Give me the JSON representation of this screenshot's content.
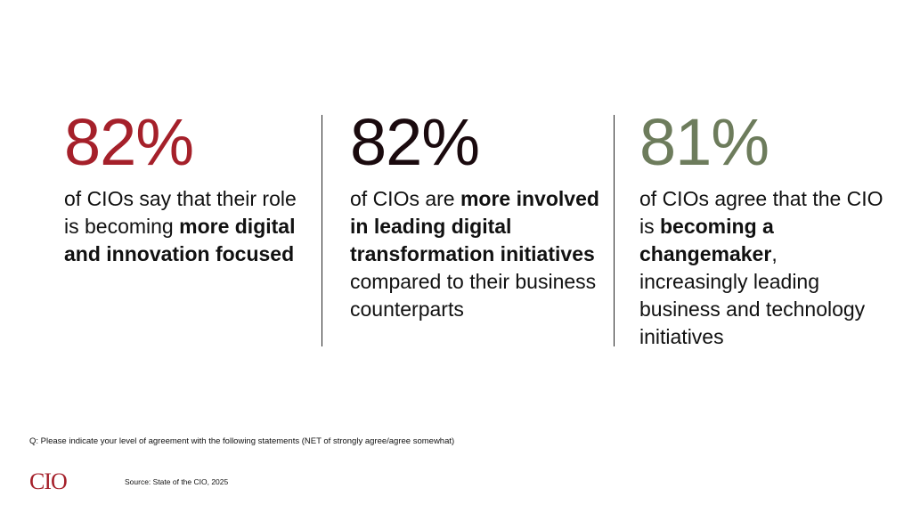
{
  "colors": {
    "stat1": "#a5202a",
    "stat2": "#1a0a0e",
    "stat3": "#6d7c5c",
    "logo": "#a5202a"
  },
  "stats": [
    {
      "value": "82%",
      "parts": [
        {
          "t": "of CIOs say that their role is becoming ",
          "b": false
        },
        {
          "t": "more digital and innovation focused",
          "b": true
        }
      ]
    },
    {
      "value": "82%",
      "parts": [
        {
          "t": "of CIOs are ",
          "b": false
        },
        {
          "t": "more involved in leading digital transformation initiatives",
          "b": true
        },
        {
          "t": " compared to their business counterparts",
          "b": false
        }
      ]
    },
    {
      "value": "81%",
      "parts": [
        {
          "t": "of CIOs agree that the CIO is ",
          "b": false
        },
        {
          "t": "becoming a changemaker",
          "b": true
        },
        {
          "t": ", increasingly leading business and technology initiatives",
          "b": false
        }
      ]
    }
  ],
  "question": "Q: Please indicate your level of agreement with the following statements (NET of strongly agree/agree somewhat)",
  "logo_text": "CIO",
  "source": "Source: State of the CIO, 2025"
}
